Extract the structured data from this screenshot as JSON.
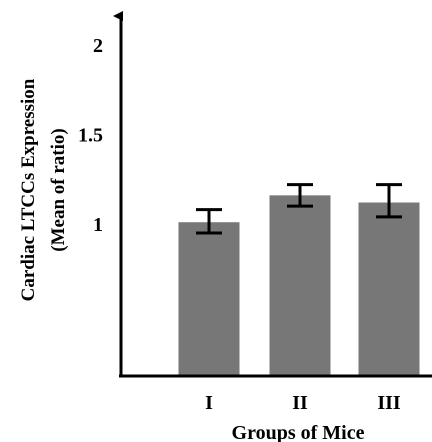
{
  "chart_data": {
    "type": "bar",
    "title": "",
    "xlabel": "Groups of Mice",
    "ylabel_line1": "Cardiac LTCCs Expression",
    "ylabel_line2": "(Mean of ratio)",
    "categories": [
      "I",
      "II",
      "III"
    ],
    "values": [
      1.01,
      1.16,
      1.12
    ],
    "error": [
      {
        "low": 0.95,
        "high": 1.08
      },
      {
        "low": 1.1,
        "high": 1.22
      },
      {
        "low": 1.04,
        "high": 1.22
      }
    ],
    "y_ticks": [
      "1",
      "1.5",
      "2"
    ],
    "y_tick_values": [
      1,
      1.5,
      2
    ],
    "ylim": [
      0,
      2
    ],
    "grid": false,
    "legend": "none",
    "bar_color": "#777777",
    "axis_color": "#000000"
  }
}
